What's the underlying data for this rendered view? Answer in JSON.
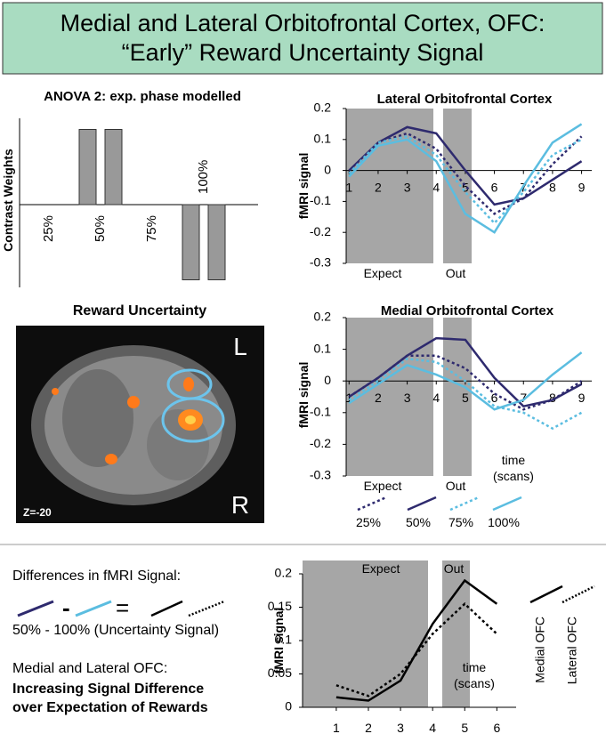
{
  "header": {
    "title": [
      "Medial and Lateral Orbitofrontal Cortex, OFC:",
      "“Early” Reward Uncertainty Signal"
    ]
  },
  "chart_data": [
    {
      "type": "bar",
      "title": "ANOVA 2: exp. phase modelled",
      "y_label": "Contrast Weights",
      "categories": [
        "25%",
        "50%",
        "75%",
        "100%"
      ],
      "series": [
        {
          "color": "#999999",
          "values": [
            0,
            1,
            0,
            -1
          ]
        },
        {
          "color": "#999999",
          "values": [
            0,
            1,
            0,
            -1
          ]
        }
      ],
      "ylim": [
        -1.1,
        1.15
      ]
    },
    {
      "type": "line",
      "title": "Lateral Orbitofrontal Cortex",
      "y_label": "fMRI signal",
      "x": [
        1,
        2,
        3,
        4,
        5,
        6,
        7,
        8,
        9
      ],
      "xlim": [
        0.9,
        9.35
      ],
      "xticks": [
        1,
        2,
        3,
        4,
        5,
        6,
        7,
        8,
        9
      ],
      "ylim": [
        -0.3,
        0.2
      ],
      "yticks": [
        0.2,
        0.1,
        0,
        -0.1,
        -0.2,
        -0.3
      ],
      "annotations": [
        "Expect",
        "Out"
      ],
      "series": [
        {
          "color": "#2e2a6e",
          "style": "dotted",
          "values": [
            -0.01,
            0.09,
            0.12,
            0.07,
            -0.05,
            -0.14,
            -0.09,
            0.02,
            0.11
          ]
        },
        {
          "color": "#2e2a6e",
          "style": "solid",
          "values": [
            0.0,
            0.09,
            0.14,
            0.12,
            0.0,
            -0.11,
            -0.09,
            -0.03,
            0.03
          ]
        },
        {
          "color": "#5bbde0",
          "style": "dotted",
          "values": [
            -0.01,
            0.09,
            0.11,
            0.05,
            -0.07,
            -0.17,
            -0.07,
            0.05,
            0.1
          ]
        },
        {
          "color": "#5bbde0",
          "style": "solid",
          "values": [
            -0.02,
            0.08,
            0.1,
            0.03,
            -0.14,
            -0.2,
            -0.05,
            0.09,
            0.15
          ]
        }
      ]
    },
    {
      "type": "line",
      "title": "Medial Orbitofrontal Cortex",
      "y_label": "fMRI signal",
      "x": [
        1,
        2,
        3,
        4,
        5,
        6,
        7,
        8,
        9
      ],
      "xlim": [
        0.9,
        9.35
      ],
      "xticks": [
        1,
        2,
        3,
        4,
        5,
        6,
        7,
        8,
        9
      ],
      "ylim": [
        -0.3,
        0.2
      ],
      "yticks": [
        0.2,
        0.1,
        0,
        -0.1,
        -0.2,
        -0.3
      ],
      "annotations": [
        "Expect",
        "Out",
        "time",
        "(scans)"
      ],
      "legend": "bottom",
      "series": [
        {
          "name": "25%",
          "color": "#2e2a6e",
          "style": "dotted",
          "values": [
            -0.05,
            0.01,
            0.08,
            0.08,
            0.04,
            -0.04,
            -0.09,
            -0.06,
            0.0
          ]
        },
        {
          "name": "50%",
          "color": "#2e2a6e",
          "style": "solid",
          "values": [
            -0.05,
            0.01,
            0.08,
            0.135,
            0.13,
            0.01,
            -0.08,
            -0.06,
            -0.01
          ]
        },
        {
          "name": "75%",
          "color": "#5bbde0",
          "style": "dotted",
          "values": [
            -0.06,
            0.0,
            0.07,
            0.06,
            0.0,
            -0.08,
            -0.1,
            -0.15,
            -0.1
          ]
        },
        {
          "name": "100%",
          "color": "#5bbde0",
          "style": "solid",
          "values": [
            -0.07,
            -0.01,
            0.05,
            0.02,
            -0.02,
            -0.09,
            -0.06,
            0.02,
            0.09
          ]
        }
      ]
    },
    {
      "type": "line",
      "y_label": "fMRI signal",
      "x": [
        1,
        2,
        3,
        4,
        5,
        6
      ],
      "xlim": [
        -0.05,
        6.6
      ],
      "xticks": [
        1,
        2,
        3,
        4,
        5,
        6
      ],
      "ylim": [
        0,
        0.2
      ],
      "yticks": [
        0,
        0.05,
        0.1,
        0.15,
        0.2
      ],
      "annotations": [
        "Expect",
        "Out",
        "time",
        "(scans)"
      ],
      "legend": "right",
      "series": [
        {
          "name": "Medial OFC",
          "color": "#000000",
          "style": "solid",
          "values": [
            0.015,
            0.01,
            0.04,
            0.125,
            0.19,
            0.155
          ]
        },
        {
          "name": "Lateral OFC",
          "color": "#000000",
          "style": "dotted",
          "values": [
            0.033,
            0.017,
            0.05,
            0.11,
            0.155,
            0.11
          ]
        }
      ]
    }
  ],
  "brain": {
    "title": "Reward Uncertainty",
    "left_label": "L",
    "right_label": "R",
    "slice": "Z=-20"
  },
  "bottom_text": {
    "heading": "Differences in fMRI Signal:",
    "minus": "-",
    "equals": "=",
    "formula": "50% - 100% (Uncertainty Signal)",
    "subheading": "Medial and Lateral OFC:",
    "conclusion": [
      "Increasing Signal Difference",
      "over Expectation of Rewards"
    ]
  }
}
